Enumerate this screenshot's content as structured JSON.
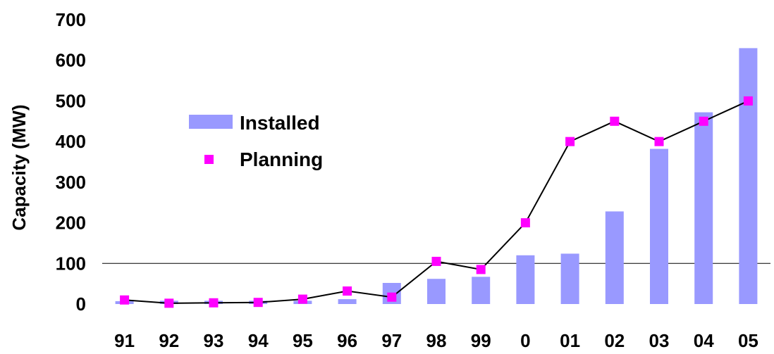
{
  "chart_data": {
    "type": "bar",
    "categories": [
      "91",
      "92",
      "93",
      "94",
      "95",
      "96",
      "97",
      "98",
      "99",
      "0",
      "01",
      "02",
      "03",
      "04",
      "05"
    ],
    "series": [
      {
        "name": "Installed",
        "type": "bar",
        "values": [
          7,
          8,
          8,
          8,
          8,
          12,
          52,
          62,
          67,
          120,
          124,
          228,
          382,
          472,
          630
        ]
      },
      {
        "name": "Planning",
        "type": "line",
        "values": [
          10,
          2,
          3,
          4,
          12,
          32,
          17,
          105,
          85,
          200,
          400,
          450,
          400,
          450,
          500
        ]
      }
    ],
    "title": "",
    "xlabel": "",
    "ylabel": "Capacity (MW)",
    "ylim": [
      0,
      700
    ],
    "yticks": [
      0,
      100,
      200,
      300,
      400,
      500,
      600,
      700
    ],
    "gridlines": [
      100
    ],
    "legend_position": "center-left",
    "colors": {
      "bar": "#9999ff",
      "marker": "#ff00ff",
      "line": "#000000"
    }
  }
}
